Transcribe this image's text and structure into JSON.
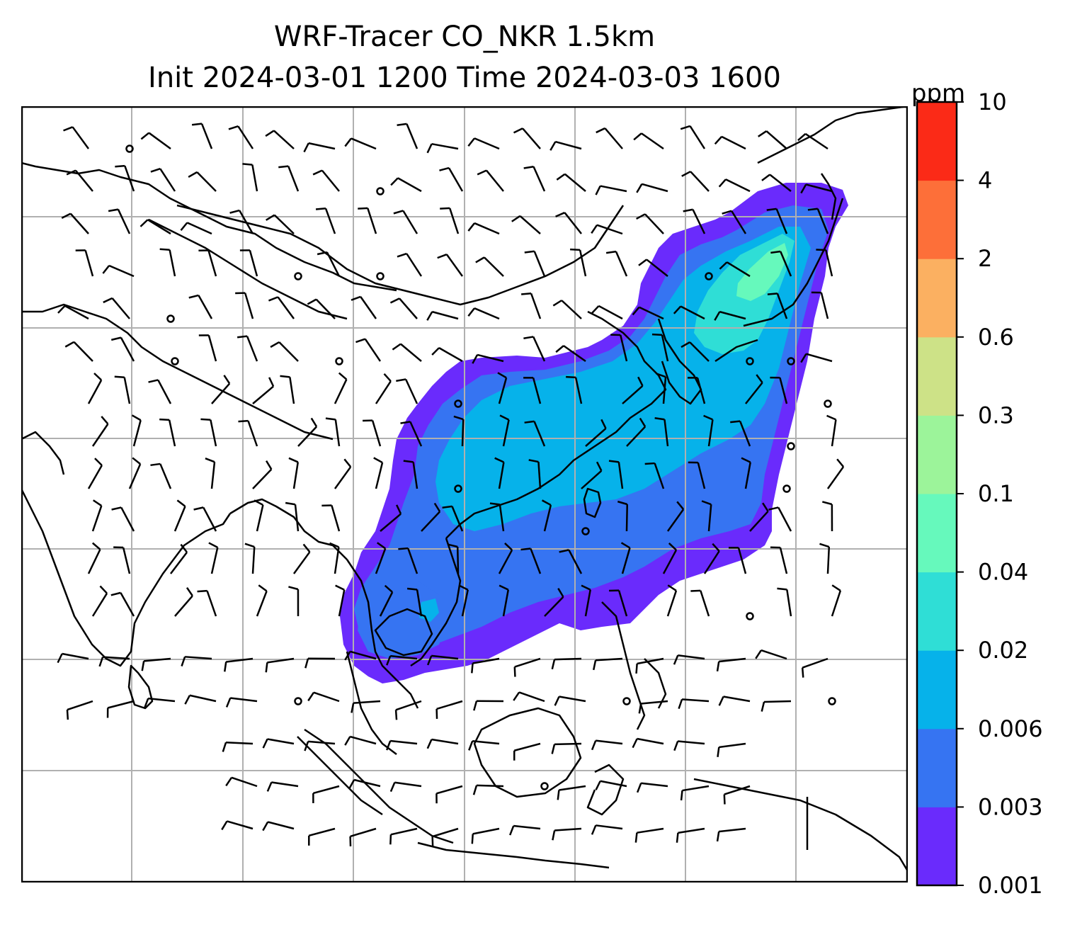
{
  "title": {
    "line1": "WRF-Tracer CO_NKR 1.5km",
    "line2": "Init 2024-03-01 1200 Time 2024-03-03 1600"
  },
  "colorbar": {
    "unit": "ppm",
    "levels": [
      "0.001",
      "0.003",
      "0.006",
      "0.02",
      "0.04",
      "0.1",
      "0.3",
      "0.6",
      "2",
      "4",
      "10"
    ],
    "colors": [
      "#6a2bfc",
      "#3674f2",
      "#06b2ea",
      "#2fded6",
      "#66f9bc",
      "#9cf49a",
      "#cde287",
      "#fbb061",
      "#fd6f39",
      "#fb2a17"
    ]
  },
  "map": {
    "gridline_color": "#b0b0b0",
    "coastline_color": "#000000",
    "wind_barb_color": "#000000"
  }
}
